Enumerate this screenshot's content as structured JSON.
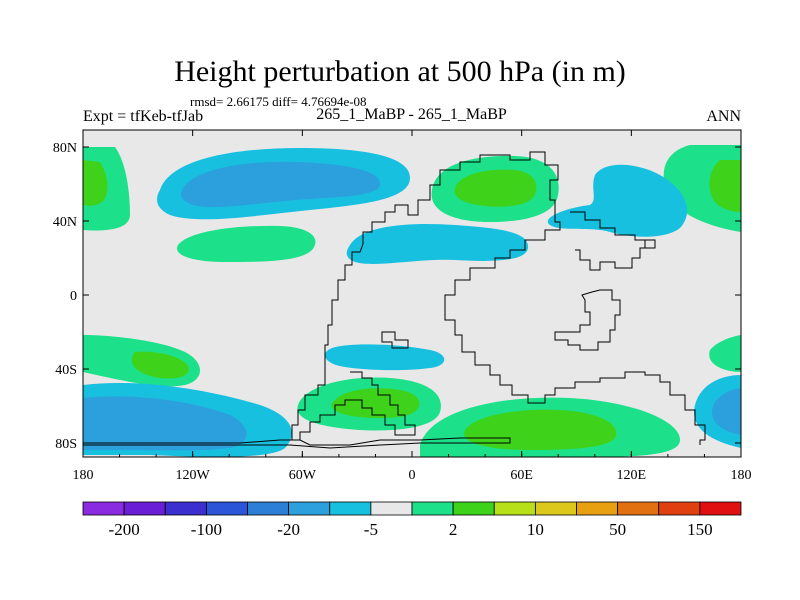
{
  "title": "Height perturbation at 500 hPa (in m)",
  "stats": "rmsd= 2.66175 diff= 4.76694e-08",
  "left_label": "Expt = tfKeb-tfJab",
  "center_label": "265_1_MaBP - 265_1_MaBP",
  "right_label": "ANN",
  "y_ticks": [
    {
      "lat": 80,
      "label": "80N"
    },
    {
      "lat": 40,
      "label": "40N"
    },
    {
      "lat": 0,
      "label": "0"
    },
    {
      "lat": -40,
      "label": "40S"
    },
    {
      "lat": -80,
      "label": "80S"
    }
  ],
  "x_ticks": [
    {
      "lon": -180,
      "label": "180"
    },
    {
      "lon": -120,
      "label": "120W"
    },
    {
      "lon": -60,
      "label": "60W"
    },
    {
      "lon": 0,
      "label": "0"
    },
    {
      "lon": 60,
      "label": "60E"
    },
    {
      "lon": 120,
      "label": "120E"
    },
    {
      "lon": 180,
      "label": "180"
    }
  ],
  "colorbar": {
    "colors": [
      "#8a2be2",
      "#6a1fd6",
      "#3b2fd0",
      "#2a55d8",
      "#2b7fd6",
      "#2ba0dc",
      "#18c0e0",
      "#e8e8e8",
      "#1de08a",
      "#3fd21a",
      "#b7e01a",
      "#dcc81a",
      "#e8a010",
      "#e07010",
      "#e04010",
      "#e01010"
    ],
    "labels": [
      {
        "index": 1,
        "label": "-200"
      },
      {
        "index": 3,
        "label": "-100"
      },
      {
        "index": 5,
        "label": "-20"
      },
      {
        "index": 7,
        "label": "-5"
      },
      {
        "index": 9,
        "label": "2"
      },
      {
        "index": 11,
        "label": "10"
      },
      {
        "index": 13,
        "label": "50"
      },
      {
        "index": 15,
        "label": "150"
      }
    ]
  },
  "colors": {
    "background_field": "#e8e8e8",
    "light_blue": "#18c0e0",
    "mid_blue": "#2ba0dc",
    "green": "#1de08a",
    "bright_green": "#3fd21a"
  }
}
